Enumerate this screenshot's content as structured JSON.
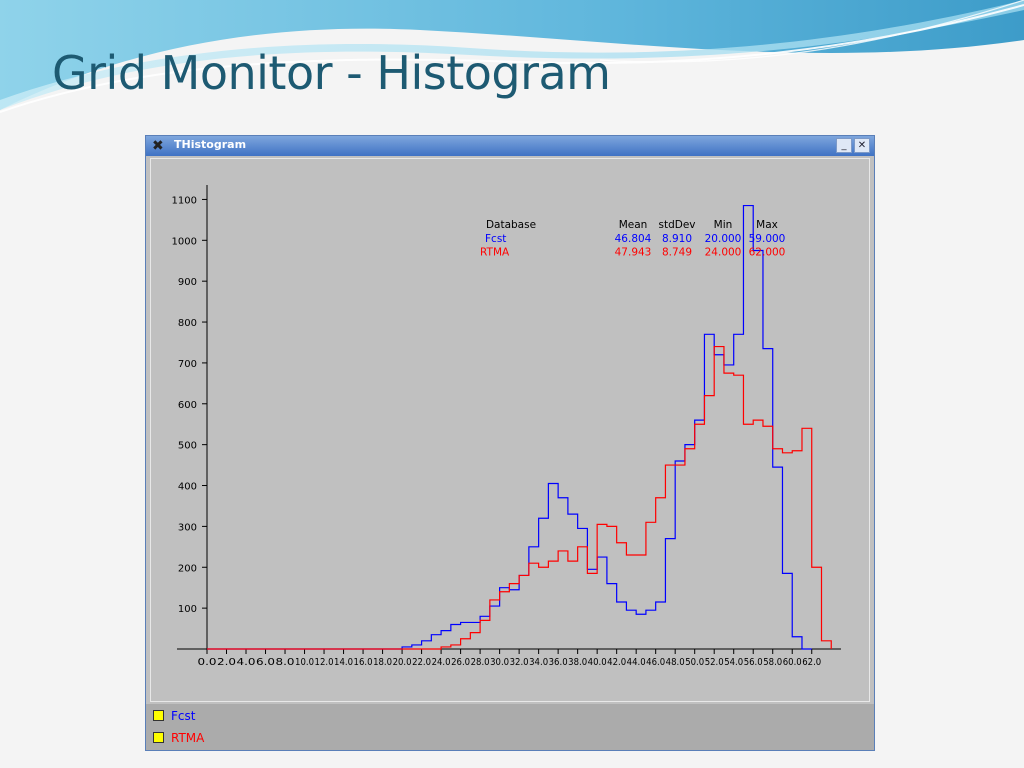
{
  "slide": {
    "title": "Grid Monitor - Histogram"
  },
  "window": {
    "title": "THistogram",
    "icon": "app-x-icon",
    "minimize_label": "_",
    "close_label": "✕"
  },
  "stats_table": {
    "headers": [
      "Database",
      "Mean",
      "stdDev",
      "Min",
      "Max"
    ],
    "rows": [
      {
        "name": "Fcst",
        "mean": "46.804",
        "stddev": "8.910",
        "min": "20.000",
        "max": "59.000",
        "color": "#0000ff"
      },
      {
        "name": "RTMA",
        "mean": "47.943",
        "stddev": "8.749",
        "min": "24.000",
        "max": "62.000",
        "color": "#ff0000"
      }
    ]
  },
  "legend": [
    {
      "name": "Fcst",
      "color": "#0000ff"
    },
    {
      "name": "RTMA",
      "color": "#ff0000"
    }
  ],
  "chart_data": {
    "type": "line",
    "step": true,
    "bin_width": 1,
    "xlim": [
      0,
      65
    ],
    "ylim": [
      0,
      1150
    ],
    "x_ticks": [
      "0.0",
      "2.0",
      "4.0",
      "6.0",
      "8.0",
      "10.0",
      "12.0",
      "14.0",
      "16.0",
      "18.0",
      "20.0",
      "22.0",
      "24.0",
      "26.0",
      "28.0",
      "30.0",
      "32.0",
      "34.0",
      "36.0",
      "38.0",
      "40.0",
      "42.0",
      "44.0",
      "46.0",
      "48.0",
      "50.0",
      "52.0",
      "54.0",
      "56.0",
      "58.0",
      "60.0",
      "62.0"
    ],
    "x_tick_values": [
      0,
      2,
      4,
      6,
      8,
      10,
      12,
      14,
      16,
      18,
      20,
      22,
      24,
      26,
      28,
      30,
      32,
      34,
      36,
      38,
      40,
      42,
      44,
      46,
      48,
      50,
      52,
      54,
      56,
      58,
      60,
      62
    ],
    "y_ticks": [
      100,
      200,
      300,
      400,
      500,
      600,
      700,
      800,
      900,
      1000,
      1100
    ],
    "series": [
      {
        "name": "Fcst",
        "color": "#0000ff",
        "x": [
          20,
          21,
          22,
          23,
          24,
          25,
          26,
          27,
          28,
          29,
          30,
          31,
          32,
          33,
          34,
          35,
          36,
          37,
          38,
          39,
          40,
          41,
          42,
          43,
          44,
          45,
          46,
          47,
          48,
          49,
          50,
          51,
          52,
          53,
          54,
          55,
          56,
          57,
          58,
          59,
          60,
          61
        ],
        "values": [
          5,
          10,
          20,
          35,
          45,
          60,
          65,
          65,
          80,
          105,
          150,
          145,
          180,
          250,
          320,
          405,
          370,
          330,
          295,
          195,
          225,
          160,
          115,
          95,
          85,
          95,
          115,
          270,
          460,
          500,
          560,
          770,
          720,
          695,
          770,
          1085,
          975,
          735,
          445,
          185,
          30,
          0
        ]
      },
      {
        "name": "RTMA",
        "color": "#ff0000",
        "x": [
          24,
          25,
          26,
          27,
          28,
          29,
          30,
          31,
          32,
          33,
          34,
          35,
          36,
          37,
          38,
          39,
          40,
          41,
          42,
          43,
          44,
          45,
          46,
          47,
          48,
          49,
          50,
          51,
          52,
          53,
          54,
          55,
          56,
          57,
          58,
          59,
          60,
          61,
          62,
          63
        ],
        "values": [
          5,
          10,
          25,
          40,
          70,
          120,
          140,
          160,
          180,
          210,
          200,
          215,
          240,
          215,
          250,
          185,
          305,
          300,
          260,
          230,
          230,
          310,
          370,
          450,
          450,
          490,
          550,
          620,
          740,
          675,
          670,
          550,
          560,
          545,
          490,
          480,
          485,
          540,
          200,
          20
        ]
      }
    ]
  }
}
